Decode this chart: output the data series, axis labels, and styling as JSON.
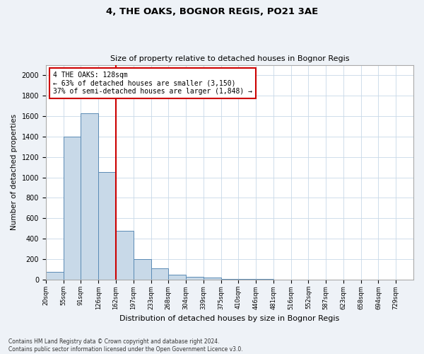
{
  "title": "4, THE OAKS, BOGNOR REGIS, PO21 3AE",
  "subtitle": "Size of property relative to detached houses in Bognor Regis",
  "xlabel": "Distribution of detached houses by size in Bognor Regis",
  "ylabel": "Number of detached properties",
  "bar_values": [
    75,
    1400,
    1625,
    1050,
    475,
    200,
    110,
    50,
    30,
    20,
    10,
    5,
    5,
    2,
    2,
    0,
    0,
    0,
    0,
    0,
    0
  ],
  "bin_labels": [
    "20sqm",
    "55sqm",
    "91sqm",
    "126sqm",
    "162sqm",
    "197sqm",
    "233sqm",
    "268sqm",
    "304sqm",
    "339sqm",
    "375sqm",
    "410sqm",
    "446sqm",
    "481sqm",
    "516sqm",
    "552sqm",
    "587sqm",
    "623sqm",
    "658sqm",
    "694sqm",
    "729sqm"
  ],
  "bar_color": "#c8d9e8",
  "bar_edge_color": "#5a8ab5",
  "marker_bin": 3,
  "marker_color": "#cc0000",
  "annotation_text": "4 THE OAKS: 128sqm\n← 63% of detached houses are smaller (3,150)\n37% of semi-detached houses are larger (1,848) →",
  "annotation_box_color": "#ffffff",
  "annotation_box_edge": "#cc0000",
  "ylim": [
    0,
    2100
  ],
  "yticks": [
    0,
    200,
    400,
    600,
    800,
    1000,
    1200,
    1400,
    1600,
    1800,
    2000
  ],
  "footer_text": "Contains HM Land Registry data © Crown copyright and database right 2024.\nContains public sector information licensed under the Open Government Licence v3.0.",
  "background_color": "#eef2f7",
  "plot_background_color": "#ffffff",
  "grid_color": "#c8d8e8"
}
